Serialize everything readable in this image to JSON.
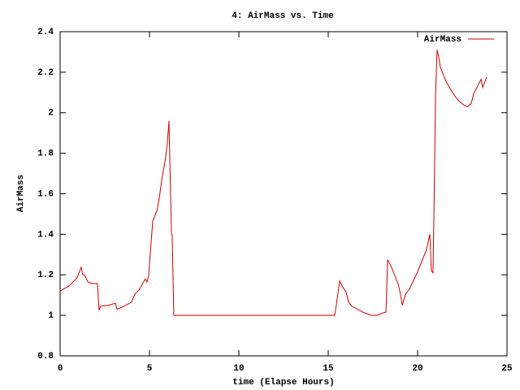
{
  "chart_data": {
    "type": "line",
    "title": "4: AirMass vs. Time",
    "x_label": "time (Elapse Hours)",
    "y_label": "AirMass",
    "xlim": [
      0,
      25
    ],
    "xticks": [
      0,
      5,
      10,
      15,
      20,
      25
    ],
    "ylim": [
      0.8,
      2.4
    ],
    "yticks": [
      0.8,
      1,
      1.2,
      1.4,
      1.6,
      1.8,
      2,
      2.2,
      2.4
    ],
    "legend": "top-right",
    "grid": false,
    "x": [
      0,
      0.5,
      0.95,
      1.18,
      1.27,
      1.36,
      1.55,
      1.77,
      2.09,
      2.18,
      2.27,
      2.73,
      3.09,
      3.18,
      3.45,
      4.0,
      4.18,
      4.41,
      4.77,
      4.86,
      4.95,
      5.18,
      5.41,
      5.55,
      5.68,
      5.86,
      6.0,
      6.09,
      6.18,
      6.23,
      6.27,
      6.36,
      15.36,
      15.45,
      15.64,
      15.77,
      16.0,
      16.14,
      16.32,
      16.64,
      16.95,
      17.41,
      17.73,
      18.14,
      18.23,
      18.32,
      18.55,
      18.91,
      19.05,
      19.14,
      19.32,
      19.55,
      19.73,
      19.95,
      20.18,
      20.5,
      20.68,
      20.77,
      20.86,
      20.91,
      21.0,
      21.09,
      21.18,
      21.27,
      21.59,
      21.91,
      22.23,
      22.55,
      22.77,
      23.0,
      23.14,
      23.55,
      23.64,
      23.86
    ],
    "series": [
      {
        "name": "AirMass",
        "color": "#cc0000",
        "values": [
          1.12,
          1.145,
          1.185,
          1.237,
          1.2,
          1.2,
          1.165,
          1.157,
          1.157,
          1.025,
          1.045,
          1.05,
          1.06,
          1.03,
          1.04,
          1.065,
          1.105,
          1.125,
          1.18,
          1.165,
          1.195,
          1.465,
          1.515,
          1.58,
          1.665,
          1.755,
          1.85,
          1.96,
          1.59,
          1.405,
          1.395,
          1.0,
          1.0,
          1.05,
          1.17,
          1.145,
          1.115,
          1.065,
          1.045,
          1.03,
          1.015,
          1.0,
          1.0,
          1.015,
          1.015,
          1.275,
          1.235,
          1.155,
          1.1,
          1.05,
          1.105,
          1.13,
          1.165,
          1.205,
          1.255,
          1.325,
          1.4,
          1.22,
          1.21,
          1.48,
          2.075,
          2.31,
          2.275,
          2.225,
          2.155,
          2.105,
          2.065,
          2.04,
          2.03,
          2.045,
          2.095,
          2.165,
          2.125,
          2.175
        ]
      }
    ]
  }
}
